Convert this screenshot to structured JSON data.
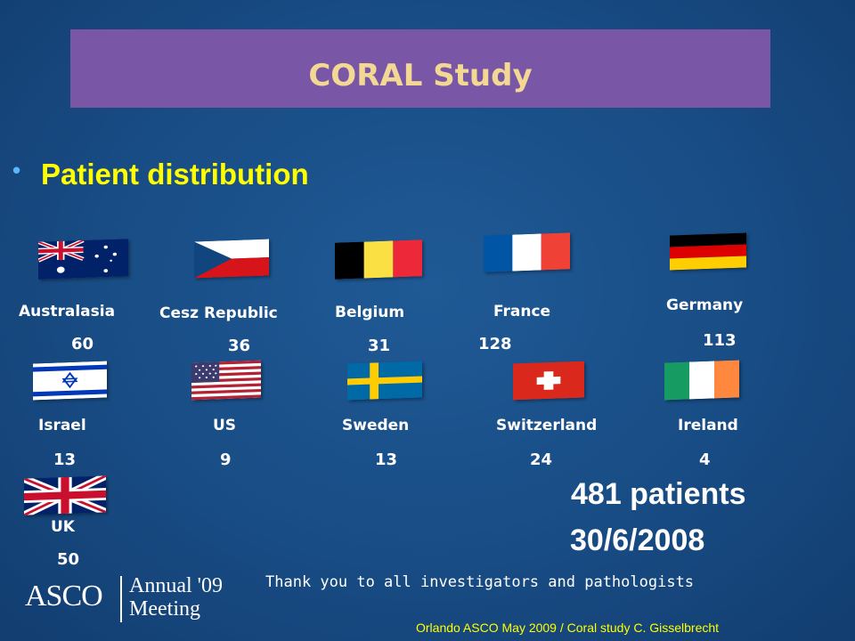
{
  "title": "CORAL Study",
  "subtitle": "Patient distribution",
  "countries": [
    {
      "name": "Australasia",
      "count": "60",
      "flag": "australia-flag"
    },
    {
      "name": "Cesz Republic",
      "count": "36",
      "flag": "czech-flag"
    },
    {
      "name": "Belgium",
      "count": "31",
      "flag": "belgium-flag"
    },
    {
      "name": "France",
      "count": "128",
      "flag": "france-flag"
    },
    {
      "name": "Germany",
      "count": "113",
      "flag": "germany-flag"
    },
    {
      "name": "Israel",
      "count": "13",
      "flag": "israel-flag"
    },
    {
      "name": "US",
      "count": "9",
      "flag": "us-flag"
    },
    {
      "name": "Sweden",
      "count": "13",
      "flag": "sweden-flag"
    },
    {
      "name": "Switzerland",
      "count": "24",
      "flag": "switzerland-flag"
    },
    {
      "name": "Ireland",
      "count": "4",
      "flag": "ireland-flag"
    },
    {
      "name": "UK",
      "count": "50",
      "flag": "uk-flag"
    }
  ],
  "total_patients": "481 patients",
  "date": "30/6/2008",
  "thanks": "Thank you to all investigators and pathologists",
  "footer": "Orlando ASCO May 2009 / Coral study  C. Gisselbrecht",
  "logo": {
    "org": "ASCO",
    "line1": "Annual '09",
    "line2": "Meeting"
  },
  "colors": {
    "background": "#184c84",
    "title_bar": "#7a56a6",
    "title_text": "#f3d894",
    "subtitle": "#ffff00"
  }
}
